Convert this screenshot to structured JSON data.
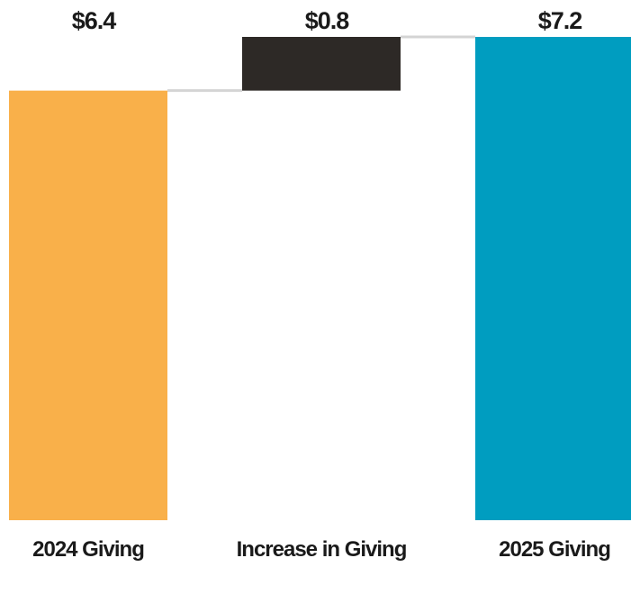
{
  "chart_data": {
    "type": "waterfall",
    "categories": [
      "2024 Giving",
      "Increase in Giving",
      "2025 Giving"
    ],
    "values": [
      6.4,
      0.8,
      7.2
    ],
    "value_labels": [
      "$6.4",
      "$0.8",
      "$7.2"
    ],
    "measure": [
      "absolute",
      "relative",
      "total"
    ],
    "colors": [
      "#f9b04a",
      "#2d2926",
      "#009dc0"
    ]
  }
}
